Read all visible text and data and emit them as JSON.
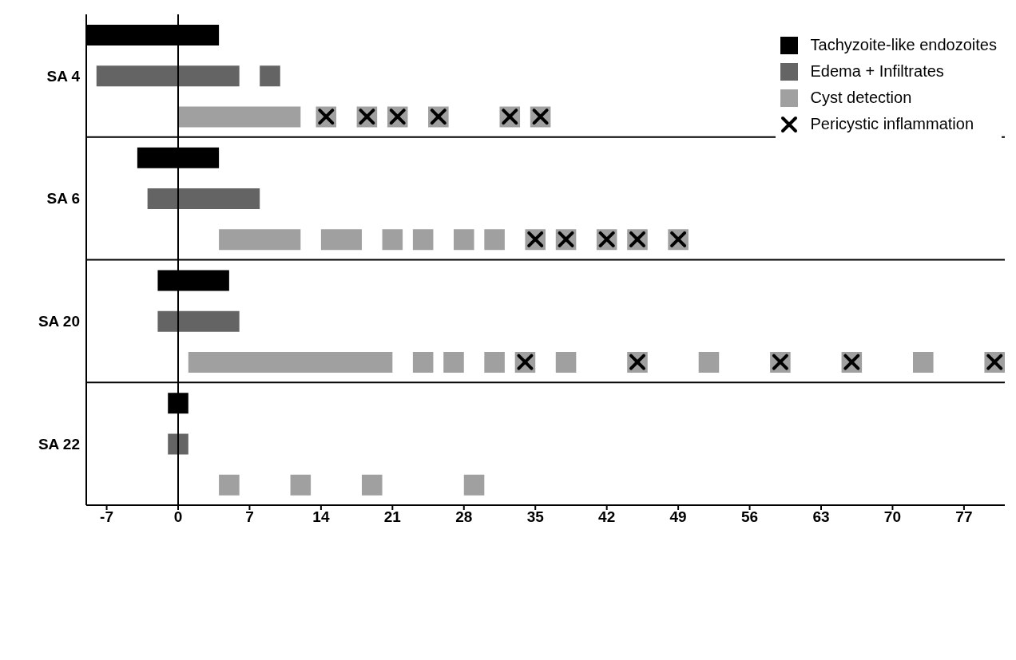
{
  "chart_data": {
    "type": "bar",
    "orientation": "horizontal",
    "legend": "top right",
    "categories": [
      null,
      "SA 4",
      null,
      null,
      "SA 6",
      null,
      null,
      "SA 20",
      null,
      null,
      "SA 22",
      null
    ],
    "xlim": [
      -9,
      81
    ],
    "xticks": [
      -7,
      0,
      7,
      14,
      21,
      28,
      35,
      42,
      49,
      56,
      63,
      70,
      77
    ],
    "ref_lines": [
      {
        "axis": "x",
        "value": 0
      }
    ],
    "series": [
      {
        "name": "Tachyzoite-like endozoites",
        "color": "#000000",
        "base": [
          -9,
          null,
          null,
          -4,
          null,
          null,
          -2,
          null,
          null,
          -1,
          null,
          null
        ],
        "values": [
          13,
          null,
          null,
          8,
          null,
          null,
          7,
          null,
          null,
          2,
          null,
          null
        ]
      },
      {
        "name": "Edema + Infiltrates",
        "color": "#646464",
        "base": [
          null,
          -8,
          null,
          null,
          -3,
          null,
          null,
          -2,
          null,
          null,
          -1,
          null
        ],
        "values": [
          null,
          14,
          null,
          null,
          11,
          null,
          null,
          8,
          null,
          null,
          2,
          null
        ]
      },
      {
        "color": "#646464",
        "base": [
          null,
          8,
          null,
          null,
          null,
          null,
          null,
          null,
          null,
          null,
          null,
          null
        ],
        "values": [
          null,
          2,
          null,
          null,
          null,
          null,
          null,
          null,
          null,
          null,
          null,
          null
        ]
      },
      {
        "name": "Cyst detection",
        "color": "#a0a0a0",
        "base": [
          null,
          null,
          0,
          null,
          null,
          4,
          null,
          null,
          1,
          null,
          null,
          4
        ],
        "values": [
          null,
          null,
          12,
          null,
          null,
          8,
          null,
          null,
          20,
          null,
          null,
          2
        ]
      },
      {
        "color": "#a0a0a0",
        "base": [
          null,
          null,
          13.5,
          null,
          null,
          14,
          null,
          null,
          23,
          null,
          null,
          11
        ],
        "values": [
          null,
          null,
          2,
          null,
          null,
          4,
          null,
          null,
          2,
          null,
          null,
          2
        ]
      },
      {
        "color": "#a0a0a0",
        "base": [
          null,
          null,
          17.5,
          null,
          null,
          20,
          null,
          null,
          26,
          null,
          null,
          18
        ],
        "values": [
          null,
          null,
          2,
          null,
          null,
          2,
          null,
          null,
          2,
          null,
          null,
          2
        ]
      },
      {
        "color": "#a0a0a0",
        "base": [
          null,
          null,
          20.5,
          null,
          null,
          23,
          null,
          null,
          30,
          null,
          null,
          28
        ],
        "values": [
          null,
          null,
          2,
          null,
          null,
          2,
          null,
          null,
          2,
          null,
          null,
          2
        ]
      },
      {
        "color": "#a0a0a0",
        "base": [
          null,
          null,
          24.5,
          null,
          null,
          27,
          null,
          null,
          33,
          null,
          null,
          null
        ],
        "values": [
          null,
          null,
          2,
          null,
          null,
          2,
          null,
          null,
          2,
          null,
          null,
          null
        ]
      },
      {
        "color": "#a0a0a0",
        "base": [
          null,
          null,
          31.5,
          null,
          null,
          30,
          null,
          null,
          37,
          null,
          null,
          null
        ],
        "values": [
          null,
          null,
          2,
          null,
          null,
          2,
          null,
          null,
          2,
          null,
          null,
          null
        ]
      },
      {
        "color": "#a0a0a0",
        "base": [
          null,
          null,
          34.5,
          null,
          null,
          34,
          null,
          null,
          44,
          null,
          null,
          null
        ],
        "values": [
          null,
          null,
          2,
          null,
          null,
          2,
          null,
          null,
          2,
          null,
          null,
          null
        ]
      },
      {
        "color": "#a0a0a0",
        "base": [
          null,
          null,
          null,
          null,
          null,
          37,
          null,
          null,
          51,
          null,
          null,
          null
        ],
        "values": [
          null,
          null,
          null,
          null,
          null,
          2,
          null,
          null,
          2,
          null,
          null,
          null
        ]
      },
      {
        "color": "#a0a0a0",
        "base": [
          null,
          null,
          null,
          null,
          null,
          41,
          null,
          null,
          58,
          null,
          null,
          null
        ],
        "values": [
          null,
          null,
          null,
          null,
          null,
          2,
          null,
          null,
          2,
          null,
          null,
          null
        ]
      },
      {
        "color": "#a0a0a0",
        "base": [
          null,
          null,
          null,
          null,
          null,
          44,
          null,
          null,
          65,
          null,
          null,
          null
        ],
        "values": [
          null,
          null,
          null,
          null,
          null,
          2,
          null,
          null,
          2,
          null,
          null,
          null
        ]
      },
      {
        "color": "#a0a0a0",
        "base": [
          null,
          null,
          null,
          null,
          null,
          48,
          null,
          null,
          72,
          null,
          null,
          null
        ],
        "values": [
          null,
          null,
          null,
          null,
          null,
          2,
          null,
          null,
          2,
          null,
          null,
          null
        ]
      },
      {
        "color": "#a0a0a0",
        "base": [
          null,
          null,
          null,
          null,
          null,
          null,
          null,
          null,
          79,
          null,
          null,
          null
        ],
        "values": [
          null,
          null,
          null,
          null,
          null,
          null,
          null,
          null,
          2,
          null,
          null,
          null
        ]
      },
      {
        "type": "scatter",
        "marker": "cross",
        "name": "Pericystic inflammation",
        "color": "#000000",
        "values": [
          null,
          null,
          14.5,
          null,
          null,
          35,
          null,
          null,
          34,
          null,
          null,
          null
        ]
      },
      {
        "type": "scatter",
        "marker": "cross",
        "color": "#000000",
        "values": [
          null,
          null,
          18.5,
          null,
          null,
          38,
          null,
          null,
          45,
          null,
          null,
          null
        ]
      },
      {
        "type": "scatter",
        "marker": "cross",
        "color": "#000000",
        "values": [
          null,
          null,
          21.5,
          null,
          null,
          42,
          null,
          null,
          59,
          null,
          null,
          null
        ]
      },
      {
        "type": "scatter",
        "marker": "cross",
        "color": "#000000",
        "values": [
          null,
          null,
          25.5,
          null,
          null,
          45,
          null,
          null,
          66,
          null,
          null,
          null
        ]
      },
      {
        "type": "scatter",
        "marker": "cross",
        "color": "#000000",
        "values": [
          null,
          null,
          32.5,
          null,
          null,
          49,
          null,
          null,
          80,
          null,
          null,
          null
        ]
      },
      {
        "type": "scatter",
        "marker": "cross",
        "color": "#000000",
        "values": [
          null,
          null,
          35.5,
          null,
          null,
          null,
          null,
          null,
          null,
          null,
          null,
          null
        ]
      }
    ]
  }
}
